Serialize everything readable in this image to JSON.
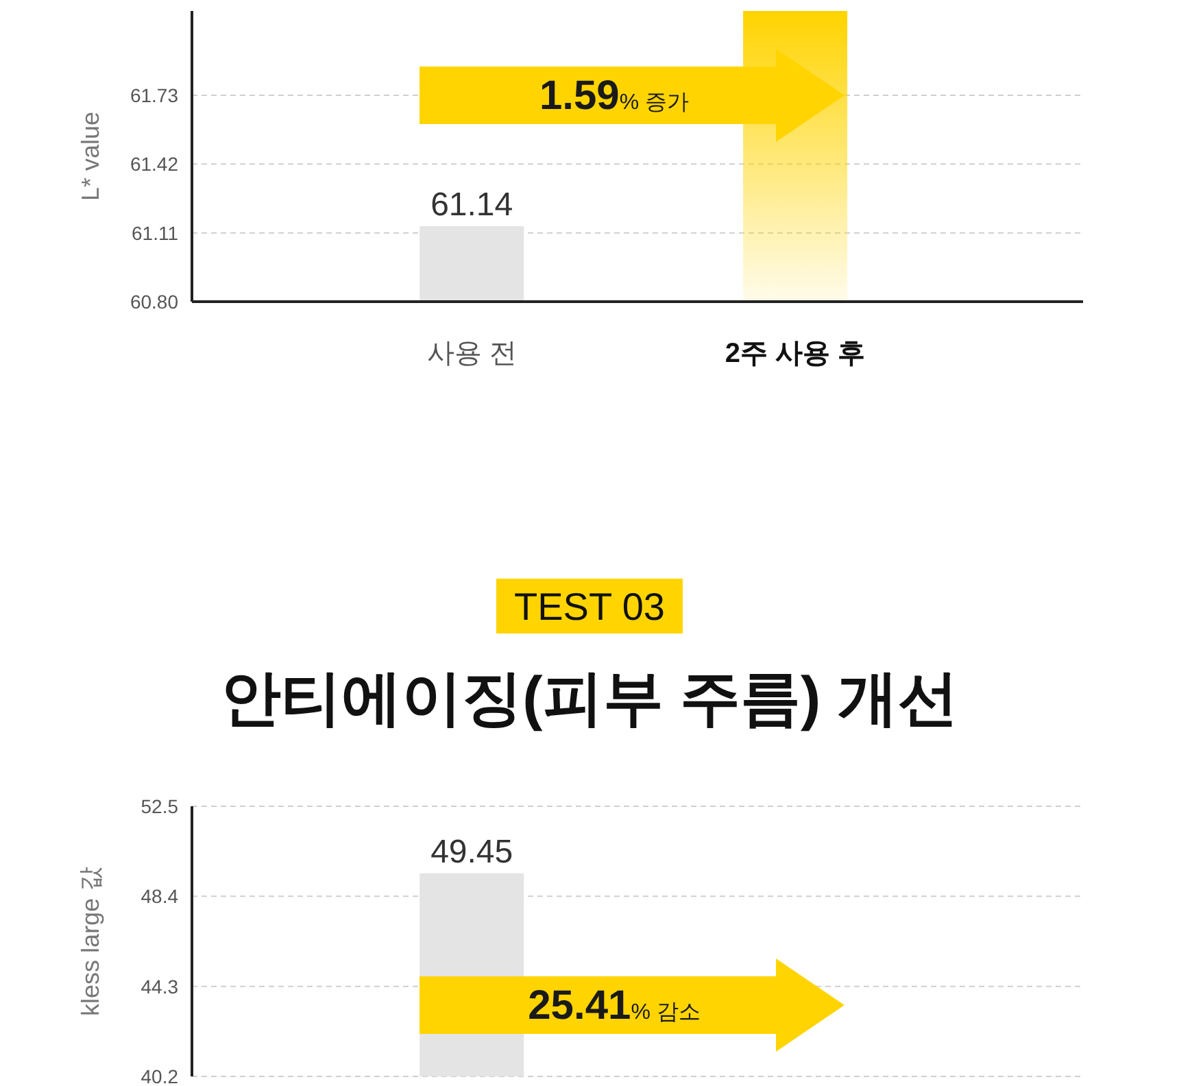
{
  "chart_data": [
    {
      "type": "bar",
      "ylabel": "L* value",
      "categories": [
        "사용 전",
        "2주 사용 후"
      ],
      "values": [
        61.14,
        62.11
      ],
      "value_labels": [
        "61.14",
        null
      ],
      "colors": [
        "#e4e4e4",
        "#ffd400"
      ],
      "ylim": [
        60.8,
        62.11
      ],
      "yticks": [
        {
          "value": 60.8,
          "label": "60.80"
        },
        61.11,
        61.42,
        61.73
      ],
      "grid": "y",
      "annotations": [
        "1.59% 증가"
      ]
    },
    {
      "type": "bar",
      "subtitle": "TEST 03",
      "title": "안티에이징(피부 주름) 개선",
      "ylabel": "kless large 값",
      "categories": [
        null,
        null
      ],
      "values": [
        49.45,
        null
      ],
      "value_labels": [
        "49.45",
        null
      ],
      "colors": [
        "#e4e4e4",
        null
      ],
      "ylim": [
        40.2,
        52.5
      ],
      "yticks": [
        40.2,
        44.3,
        48.4,
        52.5
      ],
      "grid": "y",
      "annotations": [
        "25.41% 감소"
      ]
    }
  ]
}
